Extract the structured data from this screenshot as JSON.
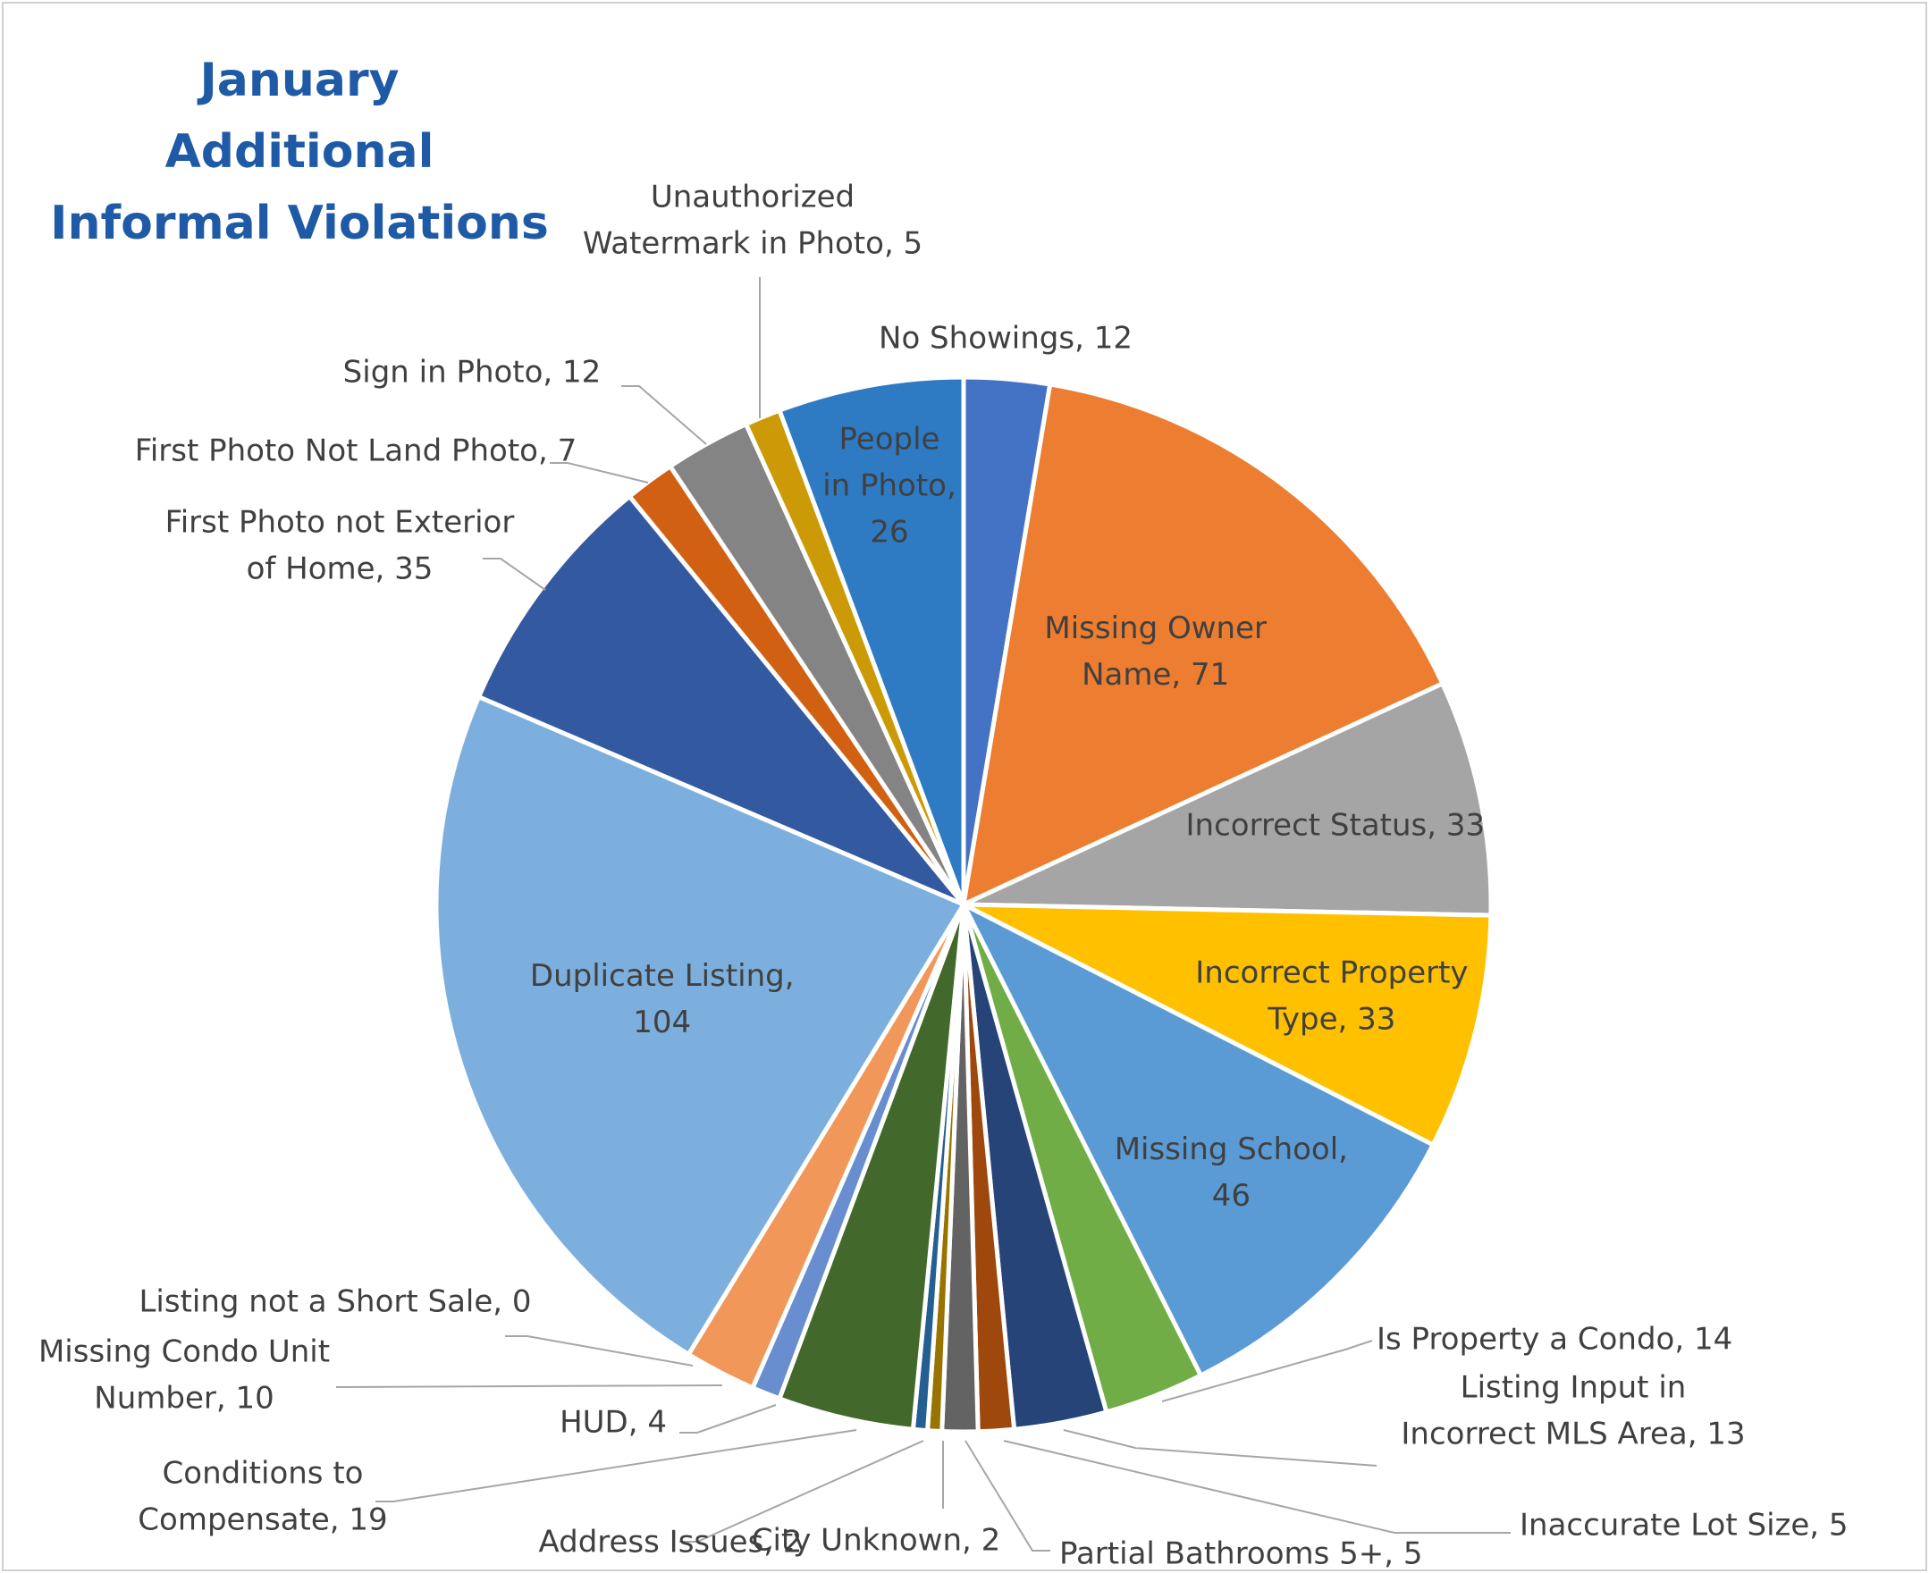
{
  "chart_data": {
    "type": "pie",
    "title_lines": [
      "January",
      "Additional",
      "Informal Violations"
    ],
    "start_angle_deg": 0,
    "direction": "clockwise",
    "slices": [
      {
        "label": "No Showings",
        "value": 12,
        "color": "#4472c4",
        "label_lines": [
          "No Showings, 12"
        ],
        "label_pos": "outside"
      },
      {
        "label": "Missing Owner Name",
        "value": 71,
        "color": "#ed7d31",
        "label_lines": [
          "Missing Owner",
          "Name, 71"
        ],
        "label_pos": "inside"
      },
      {
        "label": "Incorrect Status",
        "value": 33,
        "color": "#a5a5a5",
        "label_lines": [
          "Incorrect Status, 33"
        ],
        "label_pos": "inside"
      },
      {
        "label": "Incorrect Property Type",
        "value": 33,
        "color": "#ffc000",
        "label_lines": [
          "Incorrect Property",
          "Type, 33"
        ],
        "label_pos": "inside"
      },
      {
        "label": "Missing School",
        "value": 46,
        "color": "#5b9bd5",
        "label_lines": [
          "Missing School,",
          "46"
        ],
        "label_pos": "inside"
      },
      {
        "label": "Is Property a Condo",
        "value": 14,
        "color": "#70ad47",
        "label_lines": [
          "Is Property a Condo, 14"
        ],
        "label_pos": "outside"
      },
      {
        "label": "Listing Input in Incorrect MLS Area",
        "value": 13,
        "color": "#264478",
        "label_lines": [
          "Listing Input in",
          "Incorrect MLS Area, 13"
        ],
        "label_pos": "outside"
      },
      {
        "label": "Inaccurate Lot Size",
        "value": 5,
        "color": "#9e480e",
        "label_lines": [
          "Inaccurate Lot Size, 5"
        ],
        "label_pos": "outside"
      },
      {
        "label": "Partial Bathrooms 5+",
        "value": 5,
        "color": "#636363",
        "label_lines": [
          "Partial Bathrooms 5+, 5"
        ],
        "label_pos": "outside"
      },
      {
        "label": "City Unknown",
        "value": 2,
        "color": "#997300",
        "label_lines": [
          "City Unknown, 2"
        ],
        "label_pos": "outside"
      },
      {
        "label": "Address Issues",
        "value": 2,
        "color": "#255e91",
        "label_lines": [
          "Address Issues, 2"
        ],
        "label_pos": "outside"
      },
      {
        "label": "Conditions to Compensate",
        "value": 19,
        "color": "#43682b",
        "label_lines": [
          "Conditions to",
          "Compensate, 19"
        ],
        "label_pos": "outside"
      },
      {
        "label": "HUD",
        "value": 4,
        "color": "#698ed0",
        "label_lines": [
          "HUD, 4"
        ],
        "label_pos": "outside"
      },
      {
        "label": "Missing Condo Unit Number",
        "value": 10,
        "color": "#f1975a",
        "label_lines": [
          "Missing Condo Unit",
          "Number, 10"
        ],
        "label_pos": "outside"
      },
      {
        "label": "Listing not a Short Sale",
        "value": 0,
        "color": "#b7b7b7",
        "label_lines": [
          "Listing not a Short Sale, 0"
        ],
        "label_pos": "outside"
      },
      {
        "label": "Duplicate Listing",
        "value": 104,
        "color": "#7cafdd",
        "label_lines": [
          "Duplicate Listing,",
          "104"
        ],
        "label_pos": "inside"
      },
      {
        "label": "First Photo not Exterior of Home",
        "value": 35,
        "color": "#335aa1",
        "label_lines": [
          "First Photo not Exterior",
          "of Home, 35"
        ],
        "label_pos": "outside"
      },
      {
        "label": "First Photo Not Land Photo",
        "value": 7,
        "color": "#d26012",
        "label_lines": [
          "First Photo Not Land Photo, 7"
        ],
        "label_pos": "outside"
      },
      {
        "label": "Sign in Photo",
        "value": 12,
        "color": "#848484",
        "label_lines": [
          "Sign in Photo, 12"
        ],
        "label_pos": "outside"
      },
      {
        "label": "Unauthorized Watermark in Photo",
        "value": 5,
        "color": "#cc9a06",
        "label_lines": [
          "Unauthorized",
          "Watermark in Photo, 5"
        ],
        "label_pos": "outside"
      },
      {
        "label": "People in Photo",
        "value": 26,
        "color": "#2e7bc4",
        "label_lines": [
          "People",
          "in Photo,",
          "26"
        ],
        "label_pos": "inside"
      }
    ]
  }
}
